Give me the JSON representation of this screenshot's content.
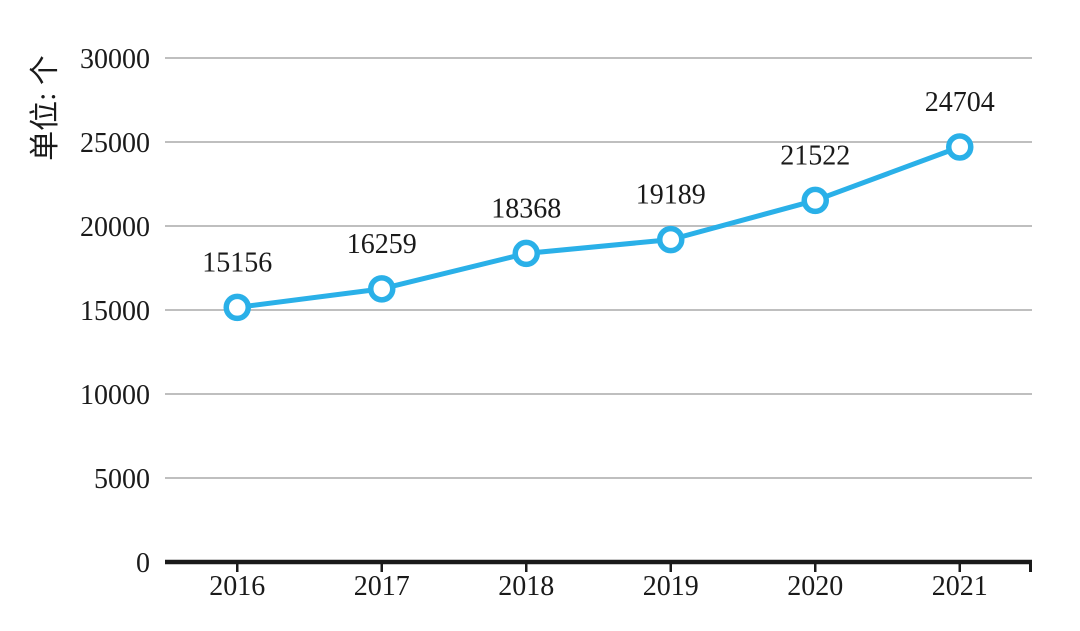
{
  "chart_data": {
    "type": "line",
    "title": "",
    "categories": [
      "2016",
      "2017",
      "2018",
      "2019",
      "2020",
      "2021"
    ],
    "series": [
      {
        "name": "",
        "values": [
          15156,
          16259,
          18368,
          19189,
          21522,
          24704
        ]
      }
    ],
    "data_labels": [
      "15156",
      "16259",
      "18368",
      "19189",
      "21522",
      "24704"
    ],
    "xlabel": "",
    "ylabel": "单位: 个",
    "ylim": [
      0,
      30000
    ],
    "ytick_step": 5000,
    "yticks": [
      "0",
      "5000",
      "10000",
      "15000",
      "20000",
      "25000",
      "30000"
    ],
    "grid": true,
    "legend": "none",
    "marker": "open-circle",
    "colors": {
      "line": "#2AB0E8",
      "marker_fill": "#FFFFFF",
      "grid": "#BFBFBF",
      "axis": "#1A1A1A",
      "text": "#1A1A1A"
    }
  }
}
